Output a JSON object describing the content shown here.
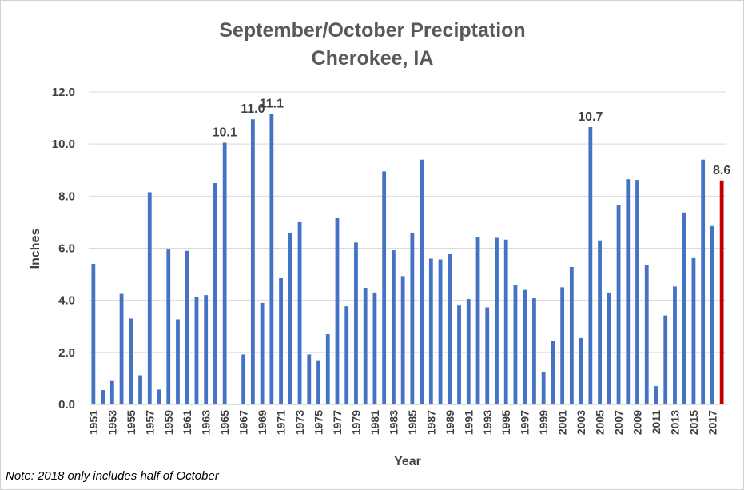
{
  "chart_data": {
    "type": "bar",
    "title": "September/October Preciptation",
    "subtitle": "Cherokee, IA",
    "xlabel": "Year",
    "ylabel": "Inches",
    "ylim": [
      0,
      12
    ],
    "yticks": [
      "0.0",
      "2.0",
      "4.0",
      "6.0",
      "8.0",
      "10.0",
      "12.0"
    ],
    "grid": true,
    "categories": [
      1951,
      1952,
      1953,
      1954,
      1955,
      1956,
      1957,
      1958,
      1959,
      1960,
      1961,
      1962,
      1963,
      1964,
      1965,
      1966,
      1967,
      1968,
      1969,
      1970,
      1971,
      1972,
      1973,
      1974,
      1975,
      1976,
      1977,
      1978,
      1979,
      1980,
      1981,
      1982,
      1983,
      1984,
      1985,
      1986,
      1987,
      1988,
      1989,
      1990,
      1991,
      1992,
      1993,
      1994,
      1995,
      1996,
      1997,
      1998,
      1999,
      2000,
      2001,
      2002,
      2003,
      2004,
      2005,
      2006,
      2007,
      2008,
      2009,
      2010,
      2011,
      2012,
      2013,
      2014,
      2015,
      2016,
      2017,
      2018
    ],
    "xtick_labels": [
      "1951",
      "1953",
      "1955",
      "1957",
      "1959",
      "1961",
      "1963",
      "1965",
      "1967",
      "1969",
      "1971",
      "1973",
      "1975",
      "1977",
      "1979",
      "1981",
      "1983",
      "1985",
      "1987",
      "1989",
      "1991",
      "1993",
      "1995",
      "1997",
      "1999",
      "2001",
      "2003",
      "2005",
      "2007",
      "2009",
      "2011",
      "2013",
      "2015",
      "2017"
    ],
    "values": [
      5.4,
      0.55,
      0.9,
      4.25,
      3.3,
      1.12,
      8.15,
      0.57,
      5.95,
      3.27,
      5.9,
      4.12,
      4.2,
      8.5,
      10.05,
      0,
      1.92,
      10.95,
      3.9,
      11.15,
      4.85,
      6.6,
      7.0,
      1.92,
      1.7,
      2.7,
      7.15,
      3.77,
      6.22,
      4.48,
      4.3,
      8.95,
      5.92,
      4.93,
      6.6,
      9.4,
      5.6,
      5.57,
      5.77,
      3.8,
      4.05,
      6.42,
      3.73,
      6.4,
      6.33,
      4.6,
      4.4,
      4.08,
      1.23,
      2.45,
      4.5,
      5.28,
      2.55,
      10.65,
      6.3,
      4.3,
      7.65,
      8.65,
      8.62,
      5.35,
      0.7,
      3.42,
      4.53,
      7.37,
      5.62,
      9.4,
      6.85,
      8.6
    ],
    "data_labels": [
      {
        "year": 1965,
        "text": "10.1"
      },
      {
        "year": 1968,
        "text": "11.0"
      },
      {
        "year": 1970,
        "text": "11.1"
      },
      {
        "year": 2004,
        "text": "10.7"
      },
      {
        "year": 2018,
        "text": "8.6"
      }
    ],
    "colors": {
      "bar": "#4472c4",
      "highlight": "#c00000",
      "grid": "#d9d9d9",
      "axis": "#bfbfbf"
    },
    "highlight_year": 2018
  },
  "note": "Note: 2018 only includes half of October"
}
